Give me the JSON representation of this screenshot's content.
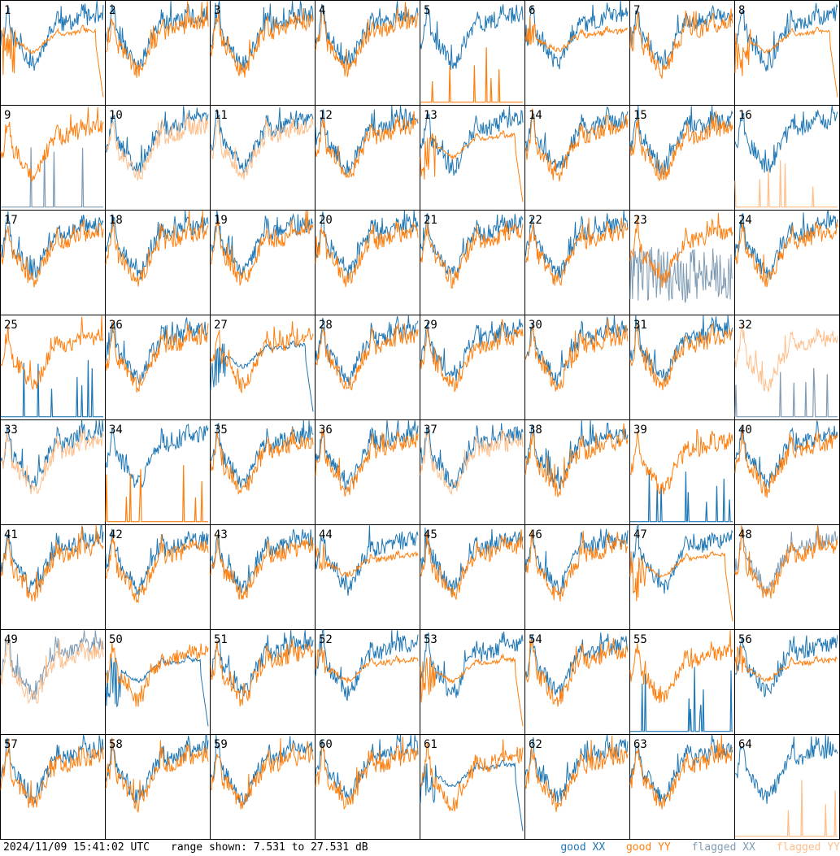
{
  "footer": {
    "timestamp": "2024/11/09 15:41:02 UTC",
    "range": "range shown: 7.531 to 27.531 dB"
  },
  "legend": [
    {
      "label": "good XX",
      "color": "#1f77b4"
    },
    {
      "label": "good YY",
      "color": "#ff7f0e"
    },
    {
      "label": "flagged XX",
      "color": "#7f9bb3"
    },
    {
      "label": "flagged YY",
      "color": "#ffbe8a"
    }
  ],
  "chart_data": {
    "type": "line",
    "grid_rows": 8,
    "grid_cols": 8,
    "y_range_db": [
      7.531,
      27.531
    ],
    "panels": [
      {
        "label": "1",
        "xx": "good",
        "yy": "good",
        "xx_shape": "normal",
        "yy_shape": "dropout"
      },
      {
        "label": "2",
        "xx": "good",
        "yy": "good",
        "xx_shape": "normal",
        "yy_shape": "normal"
      },
      {
        "label": "3",
        "xx": "good",
        "yy": "good",
        "xx_shape": "normal",
        "yy_shape": "normal"
      },
      {
        "label": "4",
        "xx": "good",
        "yy": "good",
        "xx_shape": "normal",
        "yy_shape": "normal"
      },
      {
        "label": "5",
        "xx": "good",
        "yy": "good",
        "xx_shape": "normal",
        "yy_shape": "spikes"
      },
      {
        "label": "6",
        "xx": "good",
        "yy": "good",
        "xx_shape": "normal",
        "yy_shape": "flatmid"
      },
      {
        "label": "7",
        "xx": "good",
        "yy": "good",
        "xx_shape": "normal",
        "yy_shape": "normal"
      },
      {
        "label": "8",
        "xx": "good",
        "yy": "good",
        "xx_shape": "normal",
        "yy_shape": "dropout"
      },
      {
        "label": "9",
        "xx": "flagged",
        "yy": "good",
        "xx_shape": "spikes",
        "yy_shape": "normal"
      },
      {
        "label": "10",
        "xx": "good",
        "yy": "flagged",
        "xx_shape": "normal",
        "yy_shape": "normal"
      },
      {
        "label": "11",
        "xx": "good",
        "yy": "flagged",
        "xx_shape": "normal",
        "yy_shape": "normal"
      },
      {
        "label": "12",
        "xx": "good",
        "yy": "good",
        "xx_shape": "normal",
        "yy_shape": "normal"
      },
      {
        "label": "13",
        "xx": "good",
        "yy": "good",
        "xx_shape": "normal",
        "yy_shape": "dropout"
      },
      {
        "label": "14",
        "xx": "good",
        "yy": "good",
        "xx_shape": "normal",
        "yy_shape": "normal"
      },
      {
        "label": "15",
        "xx": "good",
        "yy": "good",
        "xx_shape": "normal",
        "yy_shape": "normal"
      },
      {
        "label": "16",
        "xx": "good",
        "yy": "flagged",
        "xx_shape": "normal",
        "yy_shape": "spikes"
      },
      {
        "label": "17",
        "xx": "good",
        "yy": "good",
        "xx_shape": "normal",
        "yy_shape": "normal"
      },
      {
        "label": "18",
        "xx": "good",
        "yy": "good",
        "xx_shape": "normal",
        "yy_shape": "normal"
      },
      {
        "label": "19",
        "xx": "good",
        "yy": "good",
        "xx_shape": "normal",
        "yy_shape": "normal"
      },
      {
        "label": "20",
        "xx": "good",
        "yy": "good",
        "xx_shape": "normal",
        "yy_shape": "normal"
      },
      {
        "label": "21",
        "xx": "good",
        "yy": "good",
        "xx_shape": "normal",
        "yy_shape": "normal"
      },
      {
        "label": "22",
        "xx": "good",
        "yy": "good",
        "xx_shape": "normal",
        "yy_shape": "normal"
      },
      {
        "label": "23",
        "xx": "flagged",
        "yy": "good",
        "xx_shape": "noisy",
        "yy_shape": "normal"
      },
      {
        "label": "24",
        "xx": "good",
        "yy": "good",
        "xx_shape": "normal",
        "yy_shape": "normal"
      },
      {
        "label": "25",
        "xx": "good",
        "yy": "good",
        "xx_shape": "spikes",
        "yy_shape": "normal"
      },
      {
        "label": "26",
        "xx": "good",
        "yy": "good",
        "xx_shape": "normal",
        "yy_shape": "normal"
      },
      {
        "label": "27",
        "xx": "good",
        "yy": "good",
        "xx_shape": "dropout",
        "yy_shape": "normal"
      },
      {
        "label": "28",
        "xx": "good",
        "yy": "good",
        "xx_shape": "normal",
        "yy_shape": "normal"
      },
      {
        "label": "29",
        "xx": "good",
        "yy": "good",
        "xx_shape": "normal",
        "yy_shape": "normal"
      },
      {
        "label": "30",
        "xx": "good",
        "yy": "good",
        "xx_shape": "normal",
        "yy_shape": "normal"
      },
      {
        "label": "31",
        "xx": "good",
        "yy": "good",
        "xx_shape": "normal",
        "yy_shape": "normal"
      },
      {
        "label": "32",
        "xx": "flagged",
        "yy": "flagged",
        "xx_shape": "spikes",
        "yy_shape": "normal"
      },
      {
        "label": "33",
        "xx": "good",
        "yy": "flagged",
        "xx_shape": "normal",
        "yy_shape": "normal"
      },
      {
        "label": "34",
        "xx": "good",
        "yy": "good",
        "xx_shape": "normal",
        "yy_shape": "spikes"
      },
      {
        "label": "35",
        "xx": "good",
        "yy": "good",
        "xx_shape": "normal",
        "yy_shape": "normal"
      },
      {
        "label": "36",
        "xx": "good",
        "yy": "good",
        "xx_shape": "normal",
        "yy_shape": "normal"
      },
      {
        "label": "37",
        "xx": "good",
        "yy": "flagged",
        "xx_shape": "normal",
        "yy_shape": "normal"
      },
      {
        "label": "38",
        "xx": "good",
        "yy": "good",
        "xx_shape": "normal",
        "yy_shape": "normal"
      },
      {
        "label": "39",
        "xx": "good",
        "yy": "good",
        "xx_shape": "spikes",
        "yy_shape": "normal"
      },
      {
        "label": "40",
        "xx": "good",
        "yy": "good",
        "xx_shape": "normal",
        "yy_shape": "normal"
      },
      {
        "label": "41",
        "xx": "good",
        "yy": "good",
        "xx_shape": "normal",
        "yy_shape": "normal"
      },
      {
        "label": "42",
        "xx": "good",
        "yy": "good",
        "xx_shape": "normal",
        "yy_shape": "normal"
      },
      {
        "label": "43",
        "xx": "good",
        "yy": "good",
        "xx_shape": "normal",
        "yy_shape": "normal"
      },
      {
        "label": "44",
        "xx": "good",
        "yy": "good",
        "xx_shape": "normal",
        "yy_shape": "flatmid"
      },
      {
        "label": "45",
        "xx": "good",
        "yy": "good",
        "xx_shape": "normal",
        "yy_shape": "normal"
      },
      {
        "label": "46",
        "xx": "good",
        "yy": "good",
        "xx_shape": "normal",
        "yy_shape": "normal"
      },
      {
        "label": "47",
        "xx": "good",
        "yy": "good",
        "xx_shape": "normal",
        "yy_shape": "dropout"
      },
      {
        "label": "48",
        "xx": "flagged",
        "yy": "good",
        "xx_shape": "normal",
        "yy_shape": "normal"
      },
      {
        "label": "49",
        "xx": "flagged",
        "yy": "flagged",
        "xx_shape": "normal",
        "yy_shape": "normal"
      },
      {
        "label": "50",
        "xx": "good",
        "yy": "good",
        "xx_shape": "dropout",
        "yy_shape": "normal"
      },
      {
        "label": "51",
        "xx": "good",
        "yy": "good",
        "xx_shape": "normal",
        "yy_shape": "normal"
      },
      {
        "label": "52",
        "xx": "good",
        "yy": "good",
        "xx_shape": "normal",
        "yy_shape": "flatmid"
      },
      {
        "label": "53",
        "xx": "good",
        "yy": "good",
        "xx_shape": "normal",
        "yy_shape": "dropout"
      },
      {
        "label": "54",
        "xx": "good",
        "yy": "good",
        "xx_shape": "normal",
        "yy_shape": "normal"
      },
      {
        "label": "55",
        "xx": "good",
        "yy": "good",
        "xx_shape": "spikes",
        "yy_shape": "normal"
      },
      {
        "label": "56",
        "xx": "good",
        "yy": "good",
        "xx_shape": "normal",
        "yy_shape": "flatmid"
      },
      {
        "label": "57",
        "xx": "good",
        "yy": "good",
        "xx_shape": "normal",
        "yy_shape": "normal"
      },
      {
        "label": "58",
        "xx": "good",
        "yy": "good",
        "xx_shape": "normal",
        "yy_shape": "normal"
      },
      {
        "label": "59",
        "xx": "good",
        "yy": "good",
        "xx_shape": "normal",
        "yy_shape": "normal"
      },
      {
        "label": "60",
        "xx": "good",
        "yy": "good",
        "xx_shape": "normal",
        "yy_shape": "normal"
      },
      {
        "label": "61",
        "xx": "good",
        "yy": "good",
        "xx_shape": "dropout",
        "yy_shape": "normal"
      },
      {
        "label": "62",
        "xx": "good",
        "yy": "good",
        "xx_shape": "normal",
        "yy_shape": "normal"
      },
      {
        "label": "63",
        "xx": "good",
        "yy": "good",
        "xx_shape": "normal",
        "yy_shape": "normal"
      },
      {
        "label": "64",
        "xx": "good",
        "yy": "flagged",
        "xx_shape": "normal",
        "yy_shape": "spikes"
      }
    ]
  }
}
